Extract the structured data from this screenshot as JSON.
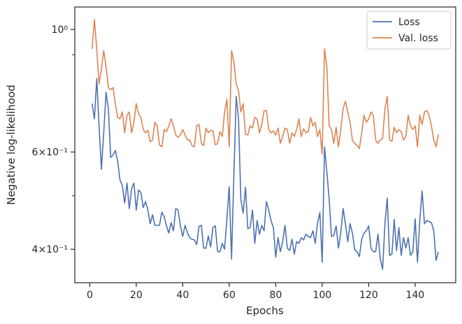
{
  "chart_data": {
    "type": "line",
    "x": [
      1,
      2,
      3,
      4,
      5,
      6,
      7,
      8,
      9,
      10,
      11,
      12,
      13,
      14,
      15,
      16,
      17,
      18,
      19,
      20,
      21,
      22,
      23,
      24,
      25,
      26,
      27,
      28,
      29,
      30,
      31,
      32,
      33,
      34,
      35,
      36,
      37,
      38,
      39,
      40,
      41,
      42,
      43,
      44,
      45,
      46,
      47,
      48,
      49,
      50,
      51,
      52,
      53,
      54,
      55,
      56,
      57,
      58,
      59,
      60,
      61,
      62,
      63,
      64,
      65,
      66,
      67,
      68,
      69,
      70,
      71,
      72,
      73,
      74,
      75,
      76,
      77,
      78,
      79,
      80,
      81,
      82,
      83,
      84,
      85,
      86,
      87,
      88,
      89,
      90,
      91,
      92,
      93,
      94,
      95,
      96,
      97,
      98,
      99,
      100,
      101,
      102,
      103,
      104,
      105,
      106,
      107,
      108,
      109,
      110,
      111,
      112,
      113,
      114,
      115,
      116,
      117,
      118,
      119,
      120,
      121,
      122,
      123,
      124,
      125,
      126,
      127,
      128,
      129,
      130,
      131,
      132,
      133,
      134,
      135,
      136,
      137,
      138,
      139,
      140,
      141,
      142,
      143,
      144,
      145,
      146,
      147,
      148,
      149,
      150
    ],
    "series": [
      {
        "name": "Loss",
        "color": "#4c72b0",
        "values": [
          0.734,
          0.689,
          0.815,
          0.669,
          0.558,
          0.65,
          0.769,
          0.719,
          0.587,
          0.592,
          0.604,
          0.578,
          0.534,
          0.522,
          0.485,
          0.527,
          0.474,
          0.515,
          0.527,
          0.471,
          0.512,
          0.507,
          0.476,
          0.488,
          0.471,
          0.445,
          0.462,
          0.442,
          0.442,
          0.442,
          0.467,
          0.458,
          0.441,
          0.428,
          0.447,
          0.432,
          0.474,
          0.471,
          0.441,
          0.422,
          0.442,
          0.429,
          0.42,
          0.417,
          0.416,
          0.408,
          0.44,
          0.442,
          0.402,
          0.402,
          0.423,
          0.404,
          0.438,
          0.441,
          0.396,
          0.396,
          0.41,
          0.4,
          0.455,
          0.519,
          0.384,
          0.545,
          0.756,
          0.689,
          0.493,
          0.465,
          0.518,
          0.436,
          0.438,
          0.471,
          0.41,
          0.451,
          0.426,
          0.442,
          0.432,
          0.488,
          0.471,
          0.451,
          0.438,
          0.387,
          0.42,
          0.396,
          0.413,
          0.442,
          0.402,
          0.398,
          0.417,
          0.392,
          0.413,
          0.41,
          0.42,
          0.416,
          0.426,
          0.422,
          0.42,
          0.432,
          0.41,
          0.447,
          0.466,
          0.379,
          0.613,
          0.553,
          0.493,
          0.422,
          0.424,
          0.441,
          0.402,
          0.429,
          0.474,
          0.445,
          0.413,
          0.445,
          0.428,
          0.399,
          0.396,
          0.388,
          0.417,
          0.428,
          0.432,
          0.441,
          0.402,
          0.396,
          0.396,
          0.426,
          0.384,
          0.368,
          0.445,
          0.495,
          0.39,
          0.392,
          0.453,
          0.398,
          0.438,
          0.39,
          0.42,
          0.402,
          0.42,
          0.39,
          0.396,
          0.454,
          0.379,
          0.451,
          0.51,
          0.445,
          0.451,
          0.449,
          0.447,
          0.432,
          0.382,
          0.396
        ]
      },
      {
        "name": "Val. loss",
        "color": "#dd8452",
        "values": [
          0.922,
          1.042,
          0.922,
          0.797,
          0.845,
          0.916,
          0.857,
          0.785,
          0.778,
          0.785,
          0.734,
          0.693,
          0.689,
          0.709,
          0.65,
          0.699,
          0.709,
          0.65,
          0.679,
          0.734,
          0.703,
          0.693,
          0.659,
          0.65,
          0.657,
          0.626,
          0.631,
          0.679,
          0.669,
          0.618,
          0.613,
          0.659,
          0.653,
          0.669,
          0.689,
          0.669,
          0.644,
          0.638,
          0.644,
          0.659,
          0.644,
          0.631,
          0.631,
          0.616,
          0.613,
          0.669,
          0.673,
          0.622,
          0.616,
          0.663,
          0.65,
          0.657,
          0.655,
          0.618,
          0.622,
          0.653,
          0.64,
          0.709,
          0.747,
          0.613,
          0.916,
          0.875,
          0.797,
          0.774,
          0.709,
          0.734,
          0.646,
          0.644,
          0.669,
          0.663,
          0.693,
          0.689,
          0.65,
          0.673,
          0.713,
          0.713,
          0.659,
          0.65,
          0.655,
          0.644,
          0.663,
          0.622,
          0.64,
          0.663,
          0.659,
          0.622,
          0.65,
          0.64,
          0.659,
          0.689,
          0.64,
          0.661,
          0.65,
          0.653,
          0.693,
          0.669,
          0.679,
          0.64,
          0.659,
          0.595,
          0.922,
          0.857,
          0.669,
          0.659,
          0.622,
          0.665,
          0.613,
          0.659,
          0.719,
          0.741,
          0.709,
          0.679,
          0.631,
          0.622,
          0.616,
          0.609,
          0.65,
          0.699,
          0.679,
          0.689,
          0.709,
          0.699,
          0.631,
          0.622,
          0.631,
          0.635,
          0.719,
          0.756,
          0.631,
          0.627,
          0.665,
          0.65,
          0.659,
          0.653,
          0.631,
          0.64,
          0.699,
          0.669,
          0.659,
          0.669,
          0.613,
          0.699,
          0.673,
          0.709,
          0.713,
          0.699,
          0.669,
          0.631,
          0.613,
          0.646
        ]
      }
    ],
    "xlabel": "Epochs",
    "ylabel": "Negative log-likelihood",
    "xlim": [
      -6.45,
      157.45
    ],
    "xticks": [
      0,
      20,
      40,
      60,
      80,
      100,
      120,
      140
    ],
    "ylim": [
      0.348,
      1.098
    ],
    "yscale": "log",
    "yticks": [
      {
        "value": 0.4,
        "label": "4×10⁻¹"
      },
      {
        "value": 0.6,
        "label": "6×10⁻¹"
      },
      {
        "value": 1,
        "label": "10⁰"
      }
    ],
    "yminorticks": [
      0.5,
      0.9
    ],
    "legend": "upper right"
  }
}
